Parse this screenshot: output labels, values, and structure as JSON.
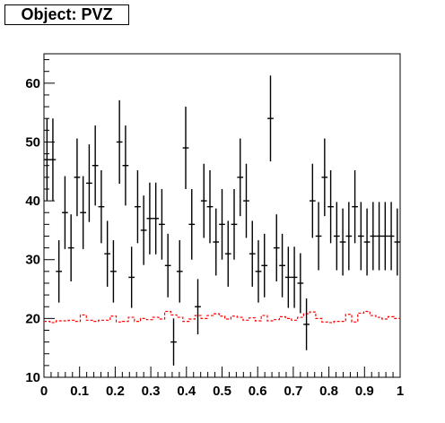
{
  "title": "Object: PVZ",
  "chart_data": {
    "type": "histogram",
    "xlim": [
      0,
      1
    ],
    "ylim": [
      10,
      65
    ],
    "x_ticks": [
      "0",
      "0.1",
      "0.2",
      "0.3",
      "0.4",
      "0.5",
      "0.6",
      "0.7",
      "0.8",
      "0.9",
      "1"
    ],
    "y_ticks": [
      "10",
      "20",
      "30",
      "40",
      "50",
      "60"
    ],
    "grid": false,
    "legend": "none",
    "series": [
      {
        "style": "points-with-error-bars",
        "color": "#000000",
        "x": [
          0.0085,
          0.025,
          0.042,
          0.059,
          0.076,
          0.093,
          0.11,
          0.127,
          0.144,
          0.161,
          0.178,
          0.195,
          0.212,
          0.229,
          0.246,
          0.263,
          0.28,
          0.297,
          0.314,
          0.331,
          0.348,
          0.364,
          0.381,
          0.398,
          0.415,
          0.432,
          0.449,
          0.466,
          0.483,
          0.5,
          0.517,
          0.534,
          0.551,
          0.568,
          0.585,
          0.602,
          0.619,
          0.636,
          0.653,
          0.669,
          0.686,
          0.703,
          0.72,
          0.737,
          0.754,
          0.771,
          0.788,
          0.805,
          0.822,
          0.839,
          0.856,
          0.873,
          0.89,
          0.907,
          0.924,
          0.941,
          0.958,
          0.975,
          0.992
        ],
        "y": [
          47,
          47,
          28,
          38,
          32,
          44,
          38,
          43,
          46,
          39,
          31,
          28,
          50,
          46,
          27,
          39,
          35,
          37,
          37,
          36,
          29,
          16,
          28,
          49,
          36,
          22,
          40,
          39,
          33,
          36,
          31,
          36,
          44,
          40,
          31,
          28,
          29,
          54,
          32,
          29,
          27,
          27,
          26,
          19,
          40,
          34,
          44,
          39,
          34,
          33,
          34,
          39,
          34,
          33,
          34,
          34,
          34,
          34,
          33
        ],
        "errors": [
          7,
          7,
          5.3,
          6.2,
          5.7,
          6.6,
          6.2,
          6.6,
          6.8,
          6.2,
          5.6,
          5.3,
          7.1,
          6.8,
          5.2,
          6.2,
          5.9,
          6.1,
          6.1,
          6,
          5.4,
          4,
          5.3,
          7,
          6,
          4.7,
          6.3,
          6.2,
          5.7,
          6,
          5.6,
          6,
          6.6,
          6.3,
          5.6,
          5.3,
          5.4,
          7.3,
          5.7,
          5.4,
          5.2,
          5.2,
          5.1,
          4.4,
          6.3,
          5.8,
          6.6,
          6.2,
          5.8,
          5.7,
          5.8,
          6.2,
          5.8,
          5.7,
          5.8,
          5.8,
          5.8,
          5.8,
          5.7
        ]
      },
      {
        "style": "step-dashed",
        "color": "#ff0000",
        "bin_edges": [
          0,
          0.017,
          0.034,
          0.051,
          0.068,
          0.085,
          0.102,
          0.119,
          0.136,
          0.153,
          0.169,
          0.186,
          0.203,
          0.22,
          0.237,
          0.254,
          0.271,
          0.288,
          0.305,
          0.322,
          0.339,
          0.356,
          0.373,
          0.39,
          0.407,
          0.424,
          0.441,
          0.458,
          0.475,
          0.492,
          0.508,
          0.525,
          0.542,
          0.559,
          0.576,
          0.593,
          0.61,
          0.627,
          0.644,
          0.661,
          0.678,
          0.695,
          0.712,
          0.729,
          0.746,
          0.763,
          0.78,
          0.797,
          0.814,
          0.831,
          0.847,
          0.864,
          0.881,
          0.898,
          0.915,
          0.932,
          0.949,
          0.966,
          0.983,
          1.0
        ],
        "values": [
          19.5,
          19.3,
          19.6,
          19.6,
          19.7,
          19.5,
          20.6,
          19.7,
          19.5,
          19.7,
          19.7,
          20.4,
          19.4,
          19.5,
          20.2,
          19.5,
          20.0,
          19.8,
          20.2,
          19.9,
          21.2,
          20.6,
          20.2,
          19.5,
          19.9,
          20.5,
          20.0,
          20.5,
          20.8,
          20.4,
          19.9,
          20.4,
          20.2,
          19.7,
          20.1,
          19.6,
          20.5,
          19.6,
          19.8,
          20.3,
          20.0,
          19.7,
          20.2,
          20.8,
          21.1,
          20.0,
          19.4,
          19.3,
          19.5,
          19.5,
          20.7,
          19.4,
          20.9,
          21.2,
          20.5,
          20.2,
          19.9,
          20.3,
          20.0
        ]
      }
    ]
  }
}
